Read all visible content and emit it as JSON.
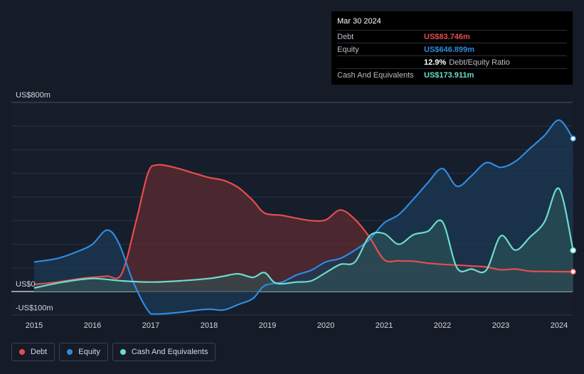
{
  "tooltip": {
    "date": "Mar 30 2024",
    "debt_label": "Debt",
    "debt_value": "US$83.746m",
    "equity_label": "Equity",
    "equity_value": "US$646.899m",
    "ratio_value": "12.9%",
    "ratio_label": "Debt/Equity Ratio",
    "cash_label": "Cash And Equivalents",
    "cash_value": "US$173.911m"
  },
  "legend": {
    "debt": "Debt",
    "equity": "Equity",
    "cash": "Cash And Equivalents"
  },
  "colors": {
    "debt": "#e64d4d",
    "equity": "#2e8be0",
    "cash": "#6cdccc"
  },
  "chart_data": {
    "type": "area",
    "y_axis_labels": [
      "US$800m",
      "US$0",
      "-US$100m"
    ],
    "ylim": [
      -100,
      800
    ],
    "x_tick_labels": [
      "2015",
      "2016",
      "2017",
      "2018",
      "2019",
      "2020",
      "2021",
      "2022",
      "2023",
      "2024"
    ],
    "grid": true,
    "legend_position": "bottom-left",
    "series": [
      {
        "name": "Debt",
        "x": [
          2015.0,
          2015.4,
          2015.8,
          2016.0,
          2016.25,
          2016.5,
          2016.75,
          2016.95,
          2017.1,
          2017.4,
          2017.75,
          2018.0,
          2018.25,
          2018.5,
          2018.75,
          2018.95,
          2019.25,
          2019.5,
          2019.75,
          2020.0,
          2020.25,
          2020.5,
          2020.75,
          2021.0,
          2021.25,
          2021.5,
          2021.75,
          2022.0,
          2022.25,
          2022.5,
          2022.75,
          2023.0,
          2023.25,
          2023.5,
          2023.75,
          2024.0,
          2024.24
        ],
        "y": [
          30,
          40,
          55,
          60,
          65,
          75,
          300,
          500,
          535,
          525,
          500,
          482,
          470,
          440,
          385,
          332,
          322,
          310,
          300,
          303,
          345,
          305,
          230,
          135,
          130,
          128,
          120,
          115,
          112,
          108,
          104,
          92,
          95,
          86,
          85,
          84,
          84
        ]
      },
      {
        "name": "Equity",
        "x": [
          2015.0,
          2015.4,
          2015.75,
          2016.0,
          2016.25,
          2016.45,
          2016.7,
          2016.95,
          2017.1,
          2017.5,
          2017.75,
          2018.0,
          2018.25,
          2018.5,
          2018.75,
          2018.95,
          2019.25,
          2019.5,
          2019.75,
          2020.0,
          2020.25,
          2020.5,
          2020.75,
          2021.0,
          2021.25,
          2021.5,
          2021.75,
          2022.0,
          2022.25,
          2022.5,
          2022.75,
          2023.0,
          2023.25,
          2023.5,
          2023.75,
          2024.0,
          2024.24
        ],
        "y": [
          125,
          140,
          170,
          200,
          260,
          205,
          40,
          -80,
          -95,
          -88,
          -80,
          -75,
          -78,
          -55,
          -30,
          25,
          40,
          70,
          90,
          125,
          140,
          175,
          220,
          290,
          325,
          390,
          460,
          520,
          445,
          490,
          545,
          525,
          550,
          605,
          660,
          725,
          647
        ]
      },
      {
        "name": "Cash And Equivalents",
        "x": [
          2015.0,
          2015.5,
          2016.0,
          2016.5,
          2017.0,
          2017.5,
          2018.0,
          2018.25,
          2018.5,
          2018.75,
          2018.95,
          2019.15,
          2019.5,
          2019.75,
          2020.0,
          2020.25,
          2020.5,
          2020.75,
          2021.0,
          2021.25,
          2021.5,
          2021.75,
          2022.0,
          2022.25,
          2022.5,
          2022.75,
          2023.0,
          2023.25,
          2023.5,
          2023.75,
          2024.0,
          2024.24
        ],
        "y": [
          15,
          40,
          55,
          45,
          40,
          45,
          55,
          65,
          75,
          60,
          80,
          35,
          40,
          45,
          80,
          115,
          125,
          235,
          245,
          200,
          240,
          255,
          295,
          100,
          95,
          90,
          235,
          175,
          230,
          295,
          435,
          174
        ]
      }
    ]
  }
}
